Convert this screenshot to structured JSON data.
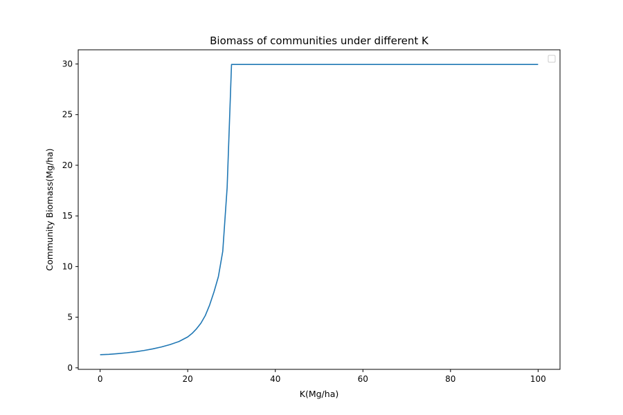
{
  "chart_data": {
    "type": "line",
    "title": "Biomass of communities under different K",
    "xlabel": "K(Mg/ha)",
    "ylabel": "Community Biomass(Mg/ha)",
    "xlim": [
      -5,
      105
    ],
    "ylim": [
      -0.15,
      31.4
    ],
    "xticks": [
      0,
      20,
      40,
      60,
      80,
      100
    ],
    "yticks": [
      0,
      5,
      10,
      15,
      20,
      25,
      30
    ],
    "grid": false,
    "legend": "top-right (empty)",
    "line_color": "#1f77b4",
    "series": [
      {
        "x": [
          0,
          2,
          4,
          6,
          8,
          10,
          12,
          14,
          16,
          18,
          20,
          21,
          22,
          23,
          24,
          25,
          26,
          27,
          28,
          29,
          30,
          31,
          35,
          40,
          45,
          50,
          55,
          60,
          65,
          70,
          75,
          80,
          85,
          90,
          95,
          100
        ],
        "values": [
          1.3,
          1.33,
          1.4,
          1.48,
          1.58,
          1.71,
          1.87,
          2.06,
          2.3,
          2.6,
          3.05,
          3.4,
          3.85,
          4.4,
          5.15,
          6.2,
          7.5,
          9.0,
          11.5,
          17.8,
          29.95,
          29.95,
          29.95,
          29.95,
          29.95,
          29.95,
          29.95,
          29.95,
          29.95,
          29.95,
          29.95,
          29.95,
          29.95,
          29.95,
          29.95,
          29.95
        ]
      }
    ]
  }
}
